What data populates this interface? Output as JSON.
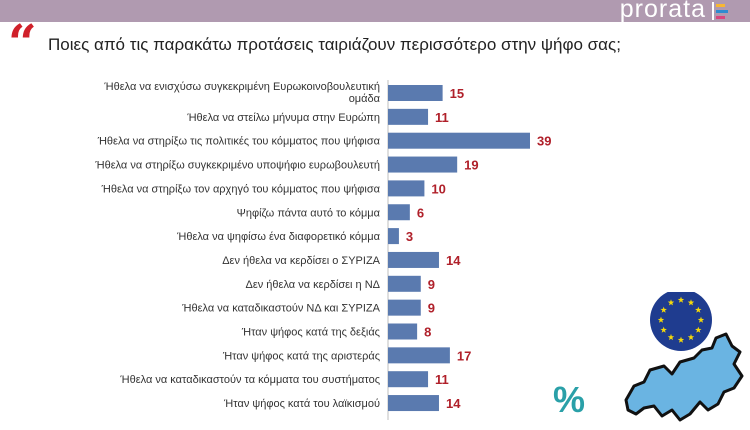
{
  "header": {
    "brand": "prorata",
    "brand_colors": [
      "#f7b733",
      "#2e8bd0",
      "#d9457e"
    ],
    "bar_color": "#b09ab0"
  },
  "question": "Ποιες από τις παρακάτω προτάσεις ταιριάζουν περισσότερο στην ψήφο σας;",
  "percent_symbol": "%",
  "chart_data": {
    "type": "bar",
    "orientation": "horizontal",
    "title": "",
    "xlabel": "",
    "ylabel": "",
    "bar_color": "#5a7aaf",
    "value_label_color": "#b0202a",
    "categories": [
      [
        "Ήθελα να ενισχύσω συγκεκριμένη Ευρωκοινοβουλευτική",
        "ομάδα"
      ],
      [
        "Ήθελα να στείλω μήνυμα στην Ευρώπη"
      ],
      [
        "Ήθελα να στηρίξω τις πολιτικές του κόμματος που ψήφισα"
      ],
      [
        "Ήθελα να στηρίξω συγκεκριμένο υποψήφιο ευρωβουλευτή"
      ],
      [
        "Ήθελα να στηρίξω τον αρχηγό του κόμματος που ψήφισα"
      ],
      [
        "Ψηφίζω πάντα αυτό το κόμμα"
      ],
      [
        "Ήθελα να ψηφίσω ένα διαφορετικό κόμμα"
      ],
      [
        "Δεν ήθελα να κερδίσει ο ΣΥΡΙΖΑ"
      ],
      [
        "Δεν ήθελα να κερδίσει η ΝΔ"
      ],
      [
        "Ήθελα να καταδικαστούν ΝΔ και ΣΥΡΙΖΑ"
      ],
      [
        "Ήταν ψήφος κατά της δεξιάς"
      ],
      [
        "Ήταν ψήφος κατά της αριστεράς"
      ],
      [
        "Ήθελα να καταδικαστούν τα κόμματα του συστήματος"
      ],
      [
        "Ήταν ψήφος κατά του λαϊκισμού"
      ]
    ],
    "values": [
      15,
      11,
      39,
      19,
      10,
      6,
      3,
      14,
      9,
      9,
      8,
      17,
      11,
      14
    ],
    "xlim": [
      0,
      39
    ]
  }
}
